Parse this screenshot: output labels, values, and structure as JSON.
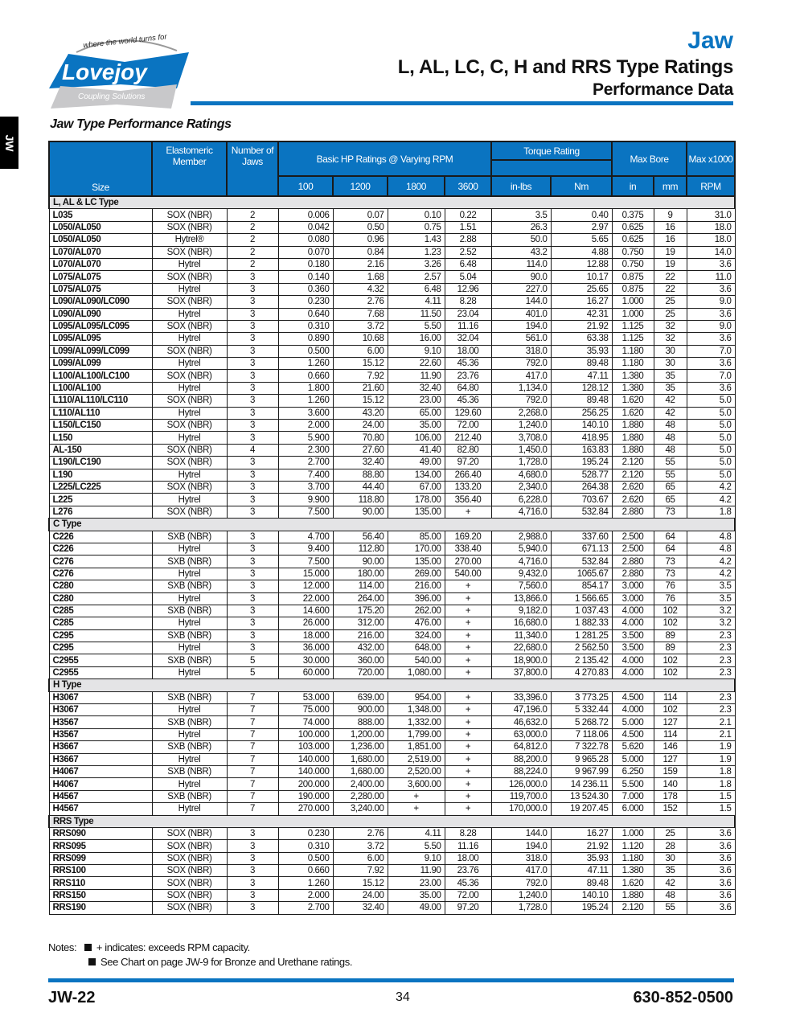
{
  "logo": {
    "tagline": "where the world turns for",
    "brand": "Lovejoy",
    "sub": "Coupling Solutions"
  },
  "header": {
    "category": "Jaw",
    "title": "L, AL, LC, C, H and RRS Type Ratings",
    "subtitle": "Performance Data"
  },
  "side_tab": "JW",
  "section_title": "Jaw Type Performance Ratings",
  "colors": {
    "accent": "#0a74c1",
    "section_bg": "#e4e4e6"
  },
  "table": {
    "headers": {
      "size": "Size",
      "elastomeric": "Elastomeric Member",
      "jaws": "Number of Jaws",
      "hp": "Basic HP Ratings @ Varying RPM",
      "rpm": [
        "100",
        "1200",
        "1800",
        "3600"
      ],
      "torque": "Torque Rating",
      "torque_units": [
        "in-lbs",
        "Nm"
      ],
      "bore": "Max Bore",
      "bore_units": [
        "in",
        "mm"
      ],
      "maxrpm": "Max x1000",
      "maxrpm_unit": "RPM"
    },
    "sections": [
      {
        "name": "L, AL & LC Type",
        "rows": [
          [
            "L035",
            "SOX (NBR)",
            "2",
            "0.006",
            "0.07",
            "0.10",
            "0.22",
            "3.5",
            "0.40",
            "0.375",
            "9",
            "31.0"
          ],
          [
            "L050/AL050",
            "SOX (NBR)",
            "2",
            "0.042",
            "0.50",
            "0.75",
            "1.51",
            "26.3",
            "2.97",
            "0.625",
            "16",
            "18.0"
          ],
          [
            "L050/AL050",
            "Hytrel®",
            "2",
            "0.080",
            "0.96",
            "1.43",
            "2.88",
            "50.0",
            "5.65",
            "0.625",
            "16",
            "18.0"
          ],
          [
            "L070/AL070",
            "SOX (NBR)",
            "2",
            "0.070",
            "0.84",
            "1.23",
            "2.52",
            "43.2",
            "4.88",
            "0.750",
            "19",
            "14.0"
          ],
          [
            "L070/AL070",
            "Hytrel",
            "2",
            "0.180",
            "2.16",
            "3.26",
            "6.48",
            "114.0",
            "12.88",
            "0.750",
            "19",
            "3.6"
          ],
          [
            "L075/AL075",
            "SOX (NBR)",
            "3",
            "0.140",
            "1.68",
            "2.57",
            "5.04",
            "90.0",
            "10.17",
            "0.875",
            "22",
            "11.0"
          ],
          [
            "L075/AL075",
            "Hytrel",
            "3",
            "0.360",
            "4.32",
            "6.48",
            "12.96",
            "227.0",
            "25.65",
            "0.875",
            "22",
            "3.6"
          ],
          [
            "L090/AL090/LC090",
            "SOX (NBR)",
            "3",
            "0.230",
            "2.76",
            "4.11",
            "8.28",
            "144.0",
            "16.27",
            "1.000",
            "25",
            "9.0"
          ],
          [
            "L090/AL090",
            "Hytrel",
            "3",
            "0.640",
            "7.68",
            "11.50",
            "23.04",
            "401.0",
            "42.31",
            "1.000",
            "25",
            "3.6"
          ],
          [
            "L095/AL095/LC095",
            "SOX (NBR)",
            "3",
            "0.310",
            "3.72",
            "5.50",
            "11.16",
            "194.0",
            "21.92",
            "1.125",
            "32",
            "9.0"
          ],
          [
            "L095/AL095",
            "Hytrel",
            "3",
            "0.890",
            "10.68",
            "16.00",
            "32.04",
            "561.0",
            "63.38",
            "1.125",
            "32",
            "3.6"
          ],
          [
            "L099/AL099/LC099",
            "SOX (NBR)",
            "3",
            "0.500",
            "6.00",
            "9.10",
            "18.00",
            "318.0",
            "35.93",
            "1.180",
            "30",
            "7.0"
          ],
          [
            "L099/AL099",
            "Hytrel",
            "3",
            "1.260",
            "15.12",
            "22.60",
            "45.36",
            "792.0",
            "89.48",
            "1.180",
            "30",
            "3.6"
          ],
          [
            "L100/AL100/LC100",
            "SOX (NBR)",
            "3",
            "0.660",
            "7.92",
            "11.90",
            "23.76",
            "417.0",
            "47.11",
            "1.380",
            "35",
            "7.0"
          ],
          [
            "L100/AL100",
            "Hytrel",
            "3",
            "1.800",
            "21.60",
            "32.40",
            "64.80",
            "1,134.0",
            "128.12",
            "1.380",
            "35",
            "3.6"
          ],
          [
            "L110/AL110/LC110",
            "SOX (NBR)",
            "3",
            "1.260",
            "15.12",
            "23.00",
            "45.36",
            "792.0",
            "89.48",
            "1.620",
            "42",
            "5.0"
          ],
          [
            "L110/AL110",
            "Hytrel",
            "3",
            "3.600",
            "43.20",
            "65.00",
            "129.60",
            "2,268.0",
            "256.25",
            "1.620",
            "42",
            "5.0"
          ],
          [
            "L150/LC150",
            "SOX (NBR)",
            "3",
            "2.000",
            "24.00",
            "35.00",
            "72.00",
            "1,240.0",
            "140.10",
            "1.880",
            "48",
            "5.0"
          ],
          [
            "L150",
            "Hytrel",
            "3",
            "5.900",
            "70.80",
            "106.00",
            "212.40",
            "3,708.0",
            "418.95",
            "1.880",
            "48",
            "5.0"
          ],
          [
            "AL-150",
            "SOX (NBR)",
            "4",
            "2.300",
            "27.60",
            "41.40",
            "82.80",
            "1,450.0",
            "163.83",
            "1.880",
            "48",
            "5.0"
          ],
          [
            "L190/LC190",
            "SOX (NBR)",
            "3",
            "2.700",
            "32.40",
            "49.00",
            "97.20",
            "1,728.0",
            "195.24",
            "2.120",
            "55",
            "5.0"
          ],
          [
            "L190",
            "Hytrel",
            "3",
            "7.400",
            "88.80",
            "134.00",
            "266.40",
            "4,680.0",
            "528.77",
            "2.120",
            "55",
            "5.0"
          ],
          [
            "L225/LC225",
            "SOX (NBR)",
            "3",
            "3.700",
            "44.40",
            "67.00",
            "133.20",
            "2,340.0",
            "264.38",
            "2.620",
            "65",
            "4.2"
          ],
          [
            "L225",
            "Hytrel",
            "3",
            "9.900",
            "118.80",
            "178.00",
            "356.40",
            "6,228.0",
            "703.67",
            "2.620",
            "65",
            "4.2"
          ],
          [
            "L276",
            "SOX (NBR)",
            "3",
            "7.500",
            "90.00",
            "135.00",
            "+",
            "4,716.0",
            "532.84",
            "2.880",
            "73",
            "1.8"
          ]
        ]
      },
      {
        "name": "C Type",
        "rows": [
          [
            "C226",
            "SXB (NBR)",
            "3",
            "4.700",
            "56.40",
            "85.00",
            "169.20",
            "2,988.0",
            "337.60",
            "2.500",
            "64",
            "4.8"
          ],
          [
            "C226",
            "Hytrel",
            "3",
            "9.400",
            "112.80",
            "170.00",
            "338.40",
            "5,940.0",
            "671.13",
            "2.500",
            "64",
            "4.8"
          ],
          [
            "C276",
            "SXB (NBR)",
            "3",
            "7.500",
            "90.00",
            "135.00",
            "270.00",
            "4,716.0",
            "532.84",
            "2.880",
            "73",
            "4.2"
          ],
          [
            "C276",
            "Hytrel",
            "3",
            "15.000",
            "180.00",
            "269.00",
            "540.00",
            "9,432.0",
            "1065.67",
            "2.880",
            "73",
            "4.2"
          ],
          [
            "C280",
            "SXB (NBR)",
            "3",
            "12.000",
            "114.00",
            "216.00",
            "+",
            "7,560.0",
            "854.17",
            "3.000",
            "76",
            "3.5"
          ],
          [
            "C280",
            "Hytrel",
            "3",
            "22.000",
            "264.00",
            "396.00",
            "+",
            "13,866.0",
            "1 566.65",
            "3.000",
            "76",
            "3.5"
          ],
          [
            "C285",
            "SXB (NBR)",
            "3",
            "14.600",
            "175.20",
            "262.00",
            "+",
            "9,182.0",
            "1 037.43",
            "4.000",
            "102",
            "3.2"
          ],
          [
            "C285",
            "Hytrel",
            "3",
            "26.000",
            "312.00",
            "476.00",
            "+",
            "16,680.0",
            "1 882.33",
            "4.000",
            "102",
            "3.2"
          ],
          [
            "C295",
            "SXB (NBR)",
            "3",
            "18.000",
            "216.00",
            "324.00",
            "+",
            "11,340.0",
            "1 281.25",
            "3.500",
            "89",
            "2.3"
          ],
          [
            "C295",
            "Hytrel",
            "3",
            "36.000",
            "432.00",
            "648.00",
            "+",
            "22,680.0",
            "2 562.50",
            "3.500",
            "89",
            "2.3"
          ],
          [
            "C2955",
            "SXB (NBR)",
            "5",
            "30.000",
            "360.00",
            "540.00",
            "+",
            "18,900.0",
            "2 135.42",
            "4.000",
            "102",
            "2.3"
          ],
          [
            "C2955",
            "Hytrel",
            "5",
            "60.000",
            "720.00",
            "1,080.00",
            "+",
            "37,800.0",
            "4 270.83",
            "4.000",
            "102",
            "2.3"
          ]
        ]
      },
      {
        "name": "H Type",
        "rows": [
          [
            "H3067",
            "SXB (NBR)",
            "7",
            "53.000",
            "639.00",
            "954.00",
            "+",
            "33,396.0",
            "3 773.25",
            "4.500",
            "114",
            "2.3"
          ],
          [
            "H3067",
            "Hytrel",
            "7",
            "75.000",
            "900.00",
            "1,348.00",
            "+",
            "47,196.0",
            "5 332.44",
            "4.000",
            "102",
            "2.3"
          ],
          [
            "H3567",
            "SXB (NBR)",
            "7",
            "74.000",
            "888.00",
            "1,332.00",
            "+",
            "46,632.0",
            "5 268.72",
            "5.000",
            "127",
            "2.1"
          ],
          [
            "H3567",
            "Hytrel",
            "7",
            "100.000",
            "1,200.00",
            "1,799.00",
            "+",
            "63,000.0",
            "7 118.06",
            "4.500",
            "114",
            "2.1"
          ],
          [
            "H3667",
            "SXB (NBR)",
            "7",
            "103.000",
            "1,236.00",
            "1,851.00",
            "+",
            "64,812.0",
            "7 322.78",
            "5.620",
            "146",
            "1.9"
          ],
          [
            "H3667",
            "Hytrel",
            "7",
            "140.000",
            "1,680.00",
            "2,519.00",
            "+",
            "88,200.0",
            "9 965.28",
            "5.000",
            "127",
            "1.9"
          ],
          [
            "H4067",
            "SXB (NBR)",
            "7",
            "140.000",
            "1,680.00",
            "2,520.00",
            "+",
            "88,224.0",
            "9 967.99",
            "6.250",
            "159",
            "1.8"
          ],
          [
            "H4067",
            "Hytrel",
            "7",
            "200.000",
            "2,400.00",
            "3,600.00",
            "+",
            "126,000.0",
            "14 236.11",
            "5.500",
            "140",
            "1.8"
          ],
          [
            "H4567",
            "SXB (NBR)",
            "7",
            "190.000",
            "2,280.00",
            "+",
            "+",
            "119,700.0",
            "13 524.30",
            "7.000",
            "178",
            "1.5"
          ],
          [
            "H4567",
            "Hytrel",
            "7",
            "270.000",
            "3,240.00",
            "+",
            "+",
            "170,000.0",
            "19 207.45",
            "6.000",
            "152",
            "1.5"
          ]
        ]
      },
      {
        "name": "RRS Type",
        "rows": [
          [
            "RRS090",
            "SOX (NBR)",
            "3",
            "0.230",
            "2.76",
            "4.11",
            "8.28",
            "144.0",
            "16.27",
            "1.000",
            "25",
            "3.6"
          ],
          [
            "RRS095",
            "SOX (NBR)",
            "3",
            "0.310",
            "3.72",
            "5.50",
            "11.16",
            "194.0",
            "21.92",
            "1.120",
            "28",
            "3.6"
          ],
          [
            "RRS099",
            "SOX (NBR)",
            "3",
            "0.500",
            "6.00",
            "9.10",
            "18.00",
            "318.0",
            "35.93",
            "1.180",
            "30",
            "3.6"
          ],
          [
            "RRS100",
            "SOX (NBR)",
            "3",
            "0.660",
            "7.92",
            "11.90",
            "23.76",
            "417.0",
            "47.11",
            "1.380",
            "35",
            "3.6"
          ],
          [
            "RRS110",
            "SOX (NBR)",
            "3",
            "1.260",
            "15.12",
            "23.00",
            "45.36",
            "792.0",
            "89.48",
            "1.620",
            "42",
            "3.6"
          ],
          [
            "RRS150",
            "SOX (NBR)",
            "3",
            "2.000",
            "24.00",
            "35.00",
            "72.00",
            "1,240.0",
            "140.10",
            "1.880",
            "48",
            "3.6"
          ],
          [
            "RRS190",
            "SOX (NBR)",
            "3",
            "2.700",
            "32.40",
            "49.00",
            "97.20",
            "1,728.0",
            "195.24",
            "2.120",
            "55",
            "3.6"
          ]
        ]
      }
    ]
  },
  "notes": {
    "label": "Notes:",
    "items": [
      "+ indicates: exceeds RPM capacity.",
      "See Chart on page JW-9 for Bronze and Urethane ratings."
    ]
  },
  "footer": {
    "section_page": "JW-22",
    "page_number": "34",
    "phone": "630-852-0500"
  }
}
